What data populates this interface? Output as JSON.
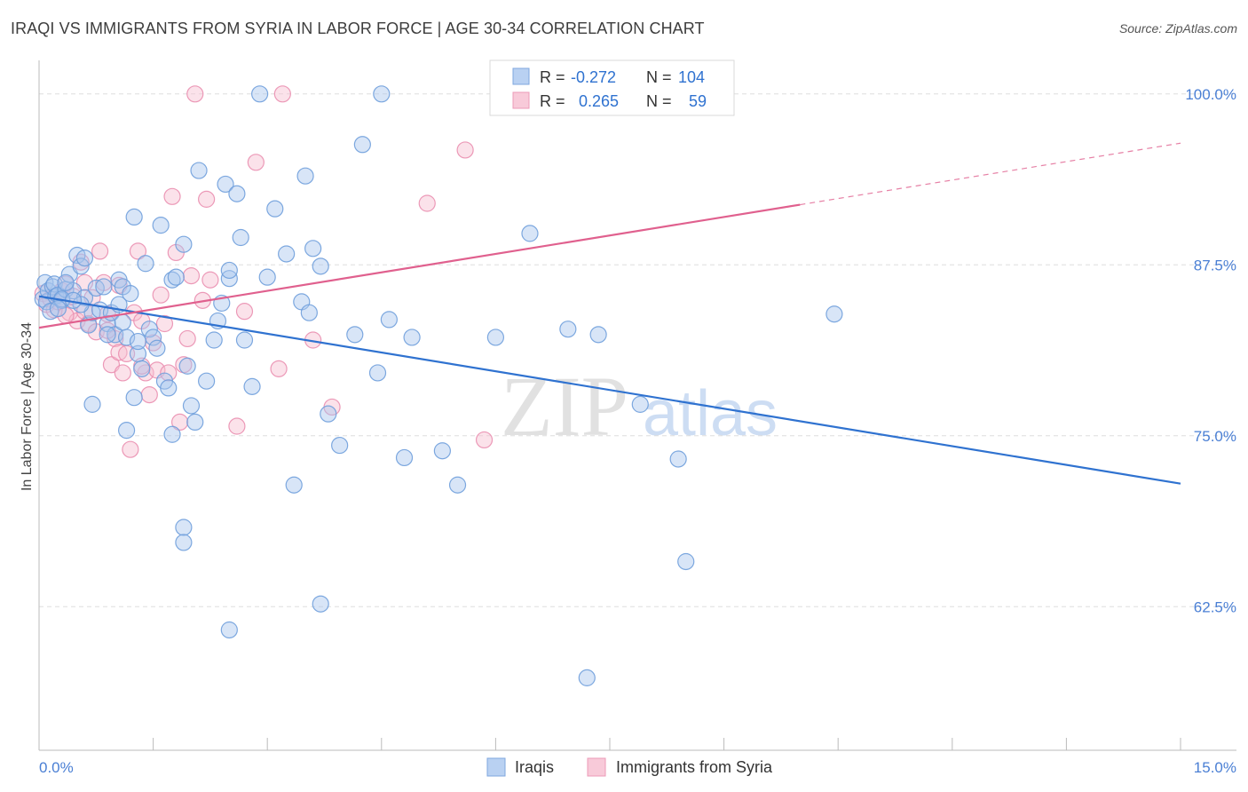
{
  "title": "IRAQI VS IMMIGRANTS FROM SYRIA IN LABOR FORCE | AGE 30-34 CORRELATION CHART",
  "source": "Source: ZipAtlas.com",
  "watermark": {
    "zip": "ZIP",
    "atlas": "atlas"
  },
  "colors": {
    "iraqis_fill": "#a8c6ee",
    "iraqis_stroke": "#6f9fdc",
    "iraqis_line": "#2f72d0",
    "syria_fill": "#f6bfd1",
    "syria_stroke": "#ea8fb0",
    "syria_line": "#e0608e",
    "tick_label": "#4a7fd4",
    "grid": "#dddddd"
  },
  "legend": {
    "r_label": "R =",
    "n_label": "N =",
    "iraqis": {
      "r": "-0.272",
      "n": "104"
    },
    "syria": {
      "r": "0.265",
      "n": "59"
    }
  },
  "chart_data": {
    "type": "scatter",
    "title": "IRAQI VS IMMIGRANTS FROM SYRIA IN LABOR FORCE | AGE 30-34 CORRELATION CHART",
    "xlabel": "",
    "ylabel": "In Labor Force | Age 30-34",
    "xlim": [
      0,
      15
    ],
    "ylim": [
      52,
      102
    ],
    "x_tick_labels": [
      "0.0%",
      "15.0%"
    ],
    "y_ticks": [
      100,
      87.5,
      75,
      62.5
    ],
    "y_tick_labels": [
      "100.0%",
      "87.5%",
      "75.0%",
      "62.5%"
    ],
    "grid": true,
    "legend_position": "top-center",
    "bottom_legend": [
      "Iraqis",
      "Immigrants from Syria"
    ],
    "series": [
      {
        "name": "Iraqis",
        "trend": {
          "x": [
            0.0,
            15.0
          ],
          "y": [
            85.2,
            71.5
          ]
        },
        "points": [
          [
            0.05,
            85.0
          ],
          [
            0.08,
            86.2
          ],
          [
            0.1,
            84.8
          ],
          [
            0.12,
            85.6
          ],
          [
            0.15,
            84.1
          ],
          [
            0.18,
            85.9
          ],
          [
            0.2,
            86.1
          ],
          [
            0.22,
            85.2
          ],
          [
            0.25,
            85.3
          ],
          [
            0.3,
            84.9
          ],
          [
            0.35,
            85.7
          ],
          [
            0.4,
            86.8
          ],
          [
            0.45,
            85.6
          ],
          [
            0.5,
            88.2
          ],
          [
            0.55,
            87.4
          ],
          [
            0.6,
            85.1
          ],
          [
            0.65,
            83.1
          ],
          [
            0.7,
            84.0
          ],
          [
            0.75,
            85.8
          ],
          [
            0.8,
            84.2
          ],
          [
            0.85,
            85.9
          ],
          [
            0.9,
            83.2
          ],
          [
            0.95,
            84.0
          ],
          [
            1.0,
            82.4
          ],
          [
            1.05,
            86.4
          ],
          [
            1.1,
            85.9
          ],
          [
            1.15,
            82.2
          ],
          [
            1.25,
            91.0
          ],
          [
            1.3,
            81.0
          ],
          [
            1.35,
            79.9
          ],
          [
            1.4,
            87.6
          ],
          [
            1.45,
            82.8
          ],
          [
            1.5,
            82.2
          ],
          [
            1.55,
            81.4
          ],
          [
            1.6,
            90.4
          ],
          [
            1.65,
            79.0
          ],
          [
            1.7,
            78.5
          ],
          [
            1.75,
            86.4
          ],
          [
            1.8,
            86.6
          ],
          [
            1.9,
            89.0
          ],
          [
            1.95,
            80.1
          ],
          [
            2.0,
            77.2
          ],
          [
            2.05,
            76.0
          ],
          [
            2.1,
            94.4
          ],
          [
            2.2,
            79.0
          ],
          [
            2.3,
            82.0
          ],
          [
            2.35,
            83.4
          ],
          [
            2.4,
            84.7
          ],
          [
            2.45,
            93.4
          ],
          [
            2.5,
            86.5
          ],
          [
            2.6,
            92.7
          ],
          [
            2.65,
            89.5
          ],
          [
            2.7,
            82.0
          ],
          [
            2.8,
            78.6
          ],
          [
            2.9,
            100.0
          ],
          [
            3.0,
            86.6
          ],
          [
            3.1,
            91.6
          ],
          [
            3.25,
            88.3
          ],
          [
            3.35,
            71.4
          ],
          [
            3.45,
            84.8
          ],
          [
            3.5,
            94.0
          ],
          [
            3.55,
            84.0
          ],
          [
            3.6,
            88.7
          ],
          [
            3.7,
            87.4
          ],
          [
            3.8,
            76.6
          ],
          [
            3.95,
            74.3
          ],
          [
            4.15,
            82.4
          ],
          [
            4.25,
            96.3
          ],
          [
            4.45,
            79.6
          ],
          [
            4.5,
            100.0
          ],
          [
            4.6,
            83.5
          ],
          [
            4.8,
            73.4
          ],
          [
            4.9,
            82.2
          ],
          [
            5.3,
            73.9
          ],
          [
            5.5,
            71.4
          ],
          [
            6.0,
            82.2
          ],
          [
            6.45,
            89.8
          ],
          [
            6.95,
            82.8
          ],
          [
            7.35,
            82.4
          ],
          [
            7.2,
            57.3
          ],
          [
            7.9,
            77.3
          ],
          [
            8.4,
            73.3
          ],
          [
            8.5,
            65.8
          ],
          [
            10.45,
            83.9
          ],
          [
            1.25,
            77.8
          ],
          [
            1.15,
            75.4
          ],
          [
            1.75,
            75.1
          ],
          [
            1.9,
            68.3
          ],
          [
            1.9,
            67.2
          ],
          [
            2.5,
            60.8
          ],
          [
            3.7,
            62.7
          ],
          [
            0.7,
            77.3
          ],
          [
            0.9,
            82.4
          ],
          [
            1.1,
            83.3
          ],
          [
            1.3,
            81.9
          ],
          [
            0.55,
            84.6
          ],
          [
            2.5,
            87.1
          ],
          [
            0.35,
            86.2
          ],
          [
            0.6,
            88.0
          ],
          [
            1.05,
            84.6
          ],
          [
            1.2,
            85.4
          ],
          [
            0.3,
            85.0
          ],
          [
            0.45,
            84.9
          ],
          [
            0.25,
            84.3
          ]
        ]
      },
      {
        "name": "Immigrants from Syria",
        "trend": {
          "x": [
            0.0,
            10.0
          ],
          "y": [
            82.9,
            91.9
          ]
        },
        "trend_extension": {
          "x": [
            10.0,
            15.0
          ],
          "y": [
            91.9,
            96.4
          ]
        },
        "points": [
          [
            0.05,
            85.4
          ],
          [
            0.1,
            84.6
          ],
          [
            0.15,
            85.0
          ],
          [
            0.2,
            84.2
          ],
          [
            0.25,
            84.8
          ],
          [
            0.3,
            85.6
          ],
          [
            0.35,
            86.1
          ],
          [
            0.4,
            84.0
          ],
          [
            0.45,
            85.2
          ],
          [
            0.5,
            83.4
          ],
          [
            0.55,
            87.7
          ],
          [
            0.6,
            84.1
          ],
          [
            0.65,
            83.2
          ],
          [
            0.7,
            85.1
          ],
          [
            0.75,
            82.6
          ],
          [
            0.8,
            88.5
          ],
          [
            0.85,
            86.2
          ],
          [
            0.9,
            83.9
          ],
          [
            0.95,
            80.2
          ],
          [
            1.0,
            82.1
          ],
          [
            1.05,
            81.1
          ],
          [
            1.1,
            79.6
          ],
          [
            1.15,
            81.0
          ],
          [
            1.2,
            74.0
          ],
          [
            1.25,
            84.0
          ],
          [
            1.3,
            88.5
          ],
          [
            1.35,
            83.4
          ],
          [
            1.4,
            79.6
          ],
          [
            1.45,
            78.0
          ],
          [
            1.5,
            81.8
          ],
          [
            1.55,
            79.8
          ],
          [
            1.6,
            85.3
          ],
          [
            1.65,
            83.2
          ],
          [
            1.7,
            79.6
          ],
          [
            1.75,
            92.5
          ],
          [
            1.8,
            88.4
          ],
          [
            1.85,
            76.0
          ],
          [
            1.9,
            80.2
          ],
          [
            1.95,
            82.1
          ],
          [
            2.0,
            86.7
          ],
          [
            2.05,
            100.0
          ],
          [
            2.15,
            84.9
          ],
          [
            2.2,
            92.3
          ],
          [
            2.25,
            86.4
          ],
          [
            2.6,
            75.7
          ],
          [
            2.7,
            84.1
          ],
          [
            2.85,
            95.0
          ],
          [
            3.15,
            79.9
          ],
          [
            3.2,
            100.0
          ],
          [
            3.6,
            82.0
          ],
          [
            3.85,
            77.1
          ],
          [
            5.1,
            92.0
          ],
          [
            5.6,
            95.9
          ],
          [
            5.85,
            74.7
          ],
          [
            0.6,
            86.2
          ],
          [
            1.05,
            86.0
          ],
          [
            0.9,
            82.7
          ],
          [
            1.35,
            80.1
          ],
          [
            0.35,
            83.8
          ]
        ]
      }
    ]
  }
}
